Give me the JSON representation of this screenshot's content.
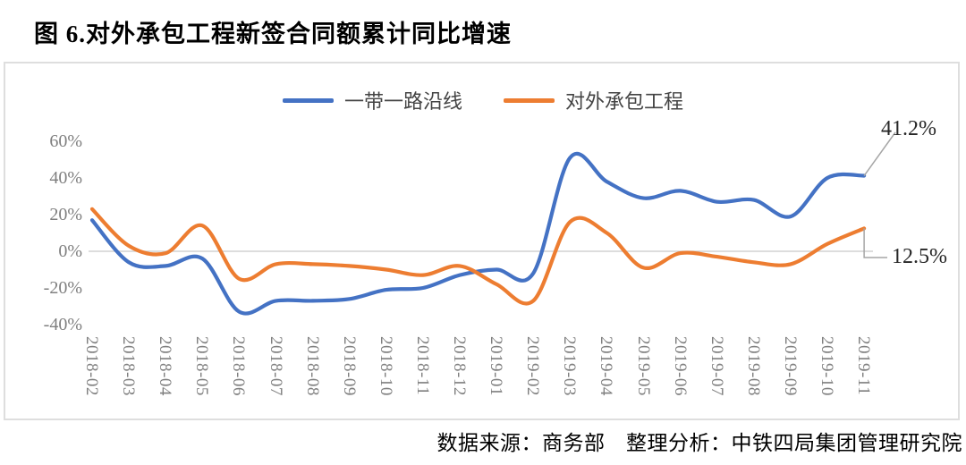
{
  "page": {
    "title": "图 6.对外承包工程新签合同额累计同比增速",
    "source_note": "数据来源：商务部　整理分析：中铁四局集团管理研究院"
  },
  "annotations": {
    "bri_end_label": "41.2%",
    "project_end_label": "12.5%"
  },
  "colors": {
    "bri_line": "#4472C4",
    "project_line": "#ED7D31",
    "zero_gridline": "#d2d2d2",
    "leader_line": "#a6a6a6",
    "tick_text": "#7f7f7f",
    "chart_border": "#dedede"
  },
  "chart_data": {
    "type": "line",
    "title": "图 6.对外承包工程新签合同额累计同比增速",
    "categories": [
      "2018-02",
      "2018-03",
      "2018-04",
      "2018-05",
      "2018-06",
      "2018-07",
      "2018-08",
      "2018-09",
      "2018-10",
      "2018-11",
      "2018-12",
      "2019-01",
      "2019-02",
      "2019-03",
      "2019-04",
      "2019-05",
      "2019-06",
      "2019-07",
      "2019-08",
      "2019-09",
      "2019-10",
      "2019-11"
    ],
    "series": [
      {
        "name": "一带一路沿线",
        "color": "#4472C4",
        "values": [
          17,
          -6,
          -8,
          -4,
          -33,
          -27,
          -27,
          -26,
          -21,
          -20,
          -13,
          -10,
          -12,
          51,
          38,
          29,
          33,
          27,
          28,
          19,
          40,
          41.2
        ]
      },
      {
        "name": "对外承包工程",
        "color": "#ED7D31",
        "values": [
          23,
          3,
          -1,
          14,
          -15,
          -7,
          -7,
          -8,
          -10,
          -13,
          -8,
          -18,
          -27,
          16,
          10,
          -9,
          -1,
          -3,
          -6,
          -7,
          4,
          12.5
        ]
      }
    ],
    "ylabel": "",
    "xlabel": "",
    "ylim": [
      -40,
      60
    ],
    "ytick_values": [
      60,
      40,
      20,
      0,
      -20,
      -40
    ],
    "ytick_labels": [
      "60%",
      "40%",
      "20%",
      "0%",
      "-20%",
      "-40%"
    ],
    "grid": "zero-line-only",
    "legend_position": "top-center",
    "end_annotations": [
      {
        "series": "一带一路沿线",
        "label": "41.2%"
      },
      {
        "series": "对外承包工程",
        "label": "12.5%"
      }
    ]
  }
}
